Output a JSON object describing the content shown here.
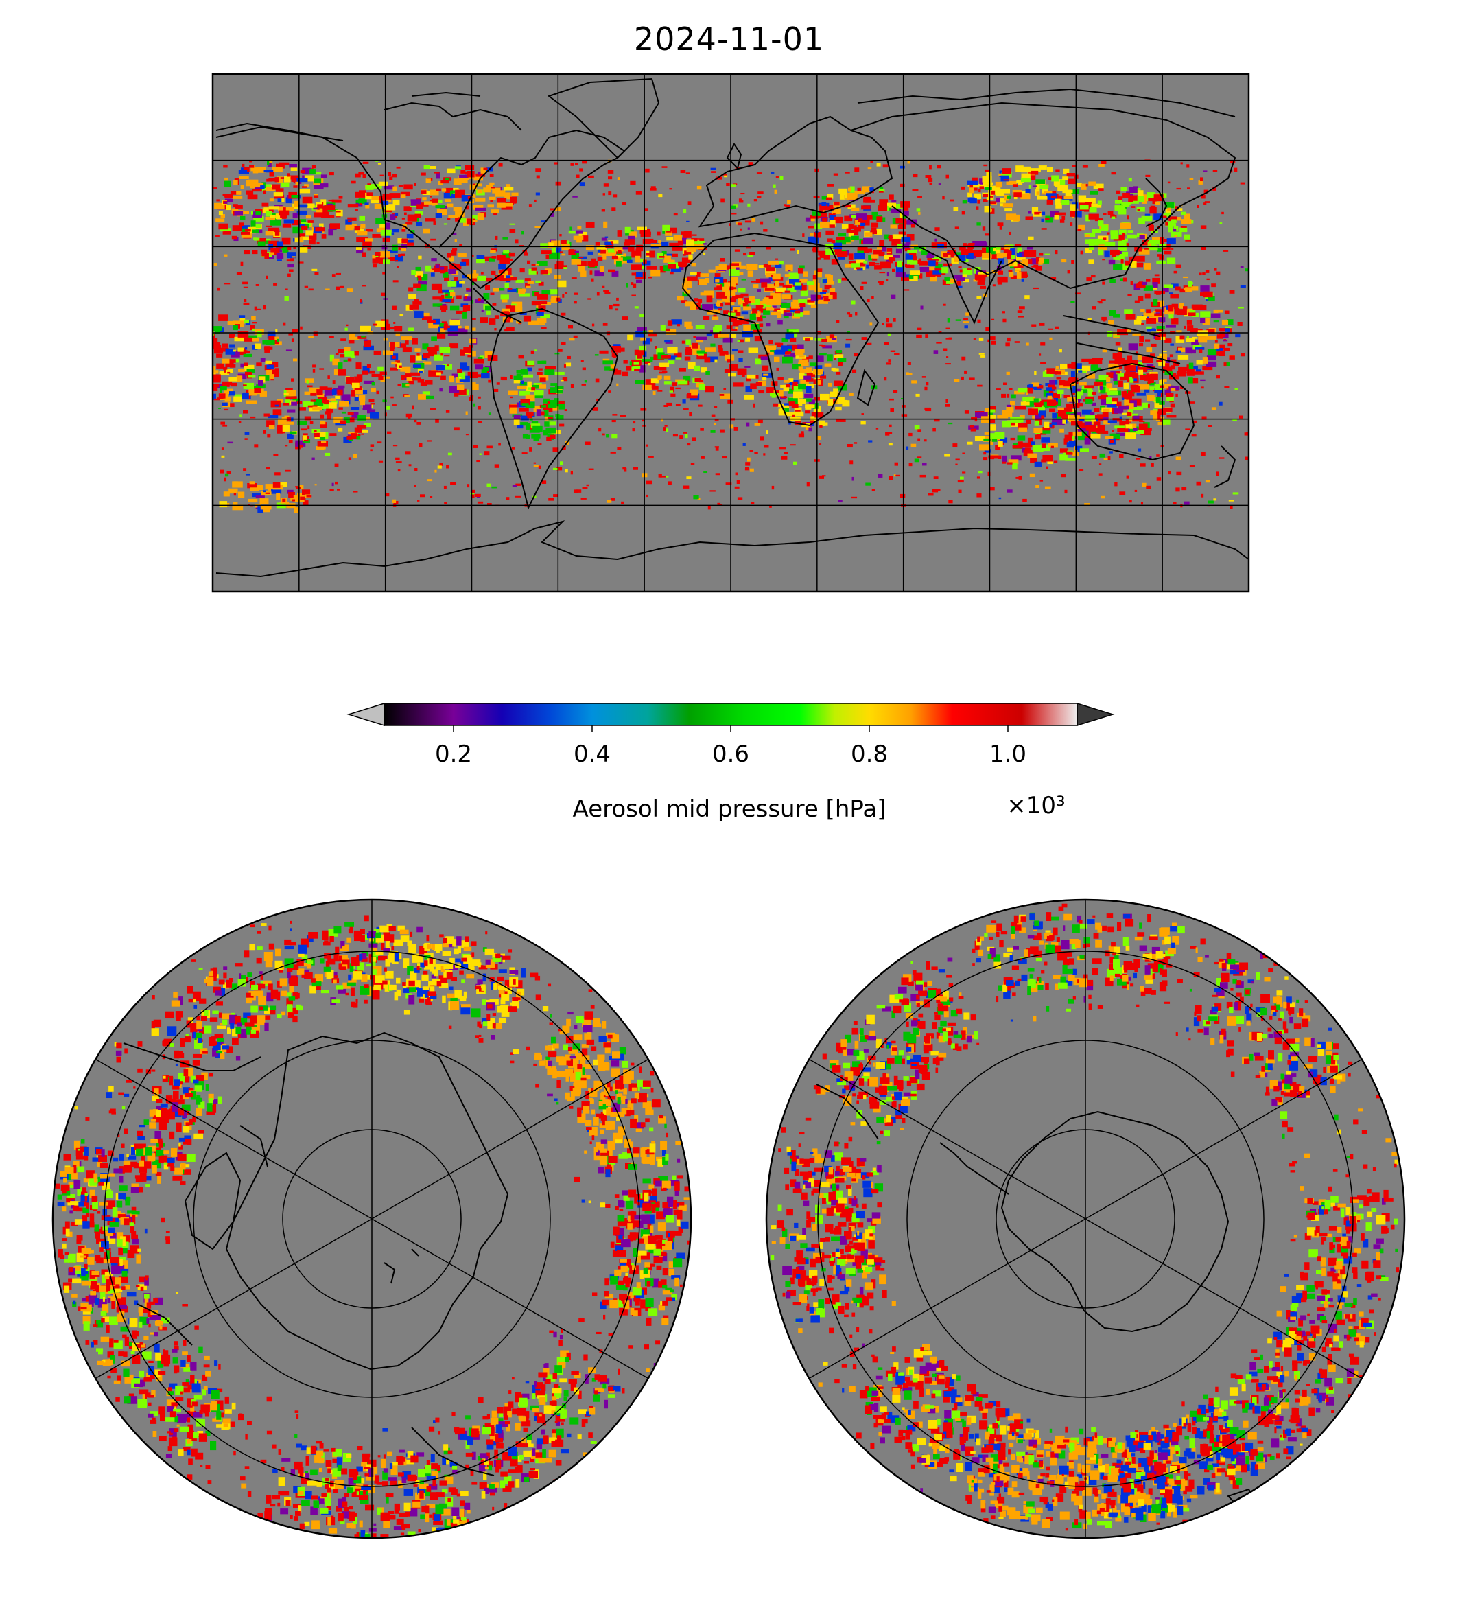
{
  "title": "2024-11-01",
  "colorbar": {
    "label": "Aerosol mid pressure [hPa]",
    "multiplier": "×10³",
    "ticks": [
      "0.2",
      "0.4",
      "0.6",
      "0.8",
      "1.0"
    ],
    "tick_values": [
      0.2,
      0.4,
      0.6,
      0.8,
      1.0
    ],
    "range": [
      0.1,
      1.1
    ],
    "extend": "both",
    "under_color": "#c0c0c0",
    "over_color": "#3a3a3a",
    "colormap_stops": [
      {
        "v": 0.1,
        "c": "#000000"
      },
      {
        "v": 0.2,
        "c": "#780098"
      },
      {
        "v": 0.27,
        "c": "#1400b4"
      },
      {
        "v": 0.34,
        "c": "#0048d8"
      },
      {
        "v": 0.4,
        "c": "#0090dd"
      },
      {
        "v": 0.48,
        "c": "#00a49c"
      },
      {
        "v": 0.54,
        "c": "#00a000"
      },
      {
        "v": 0.62,
        "c": "#00dc00"
      },
      {
        "v": 0.7,
        "c": "#00ff00"
      },
      {
        "v": 0.75,
        "c": "#c0f000"
      },
      {
        "v": 0.8,
        "c": "#ffdc00"
      },
      {
        "v": 0.86,
        "c": "#ffa000"
      },
      {
        "v": 0.92,
        "c": "#ff0000"
      },
      {
        "v": 1.02,
        "c": "#cc0000"
      },
      {
        "v": 1.1,
        "c": "#eeeeee"
      }
    ]
  },
  "maps": {
    "global": {
      "projection": "plate carree",
      "background": "#808080"
    },
    "north_polar": {
      "projection": "north polar stereographic",
      "background": "#808080"
    },
    "south_polar": {
      "projection": "south polar stereographic",
      "background": "#808080"
    }
  },
  "colors": {
    "red": "#ee0000",
    "orange": "#ffa500",
    "yellow": "#ffe000",
    "lime": "#7fff00",
    "green": "#00c000",
    "blue": "#0033dd",
    "purple": "#7a00a0",
    "land_line": "#000000",
    "no_data": "#808080"
  }
}
